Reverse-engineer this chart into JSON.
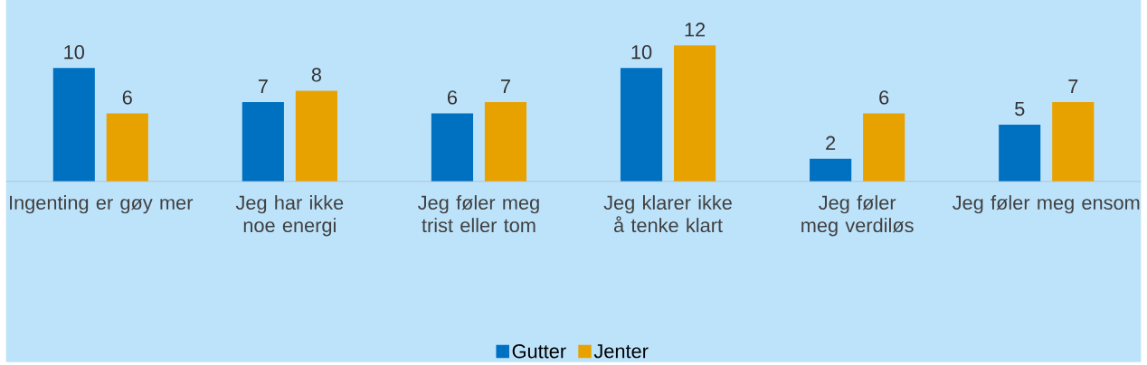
{
  "chart_data": {
    "type": "bar",
    "categories": [
      "Ingenting er gøy mer",
      "Jeg har ikke noe energi",
      "Jeg føler meg trist eller tom",
      "Jeg klarer ikke å tenke klart",
      "Jeg føler meg verdiløs",
      "Jeg føler meg ensom"
    ],
    "series": [
      {
        "name": "Gutter",
        "color": "#0070c0",
        "values": [
          10,
          7,
          6,
          10,
          2,
          5
        ]
      },
      {
        "name": "Jenter",
        "color": "#e8a200",
        "values": [
          6,
          8,
          7,
          12,
          6,
          7
        ]
      }
    ],
    "data_labels": true,
    "legend": "bottom"
  }
}
